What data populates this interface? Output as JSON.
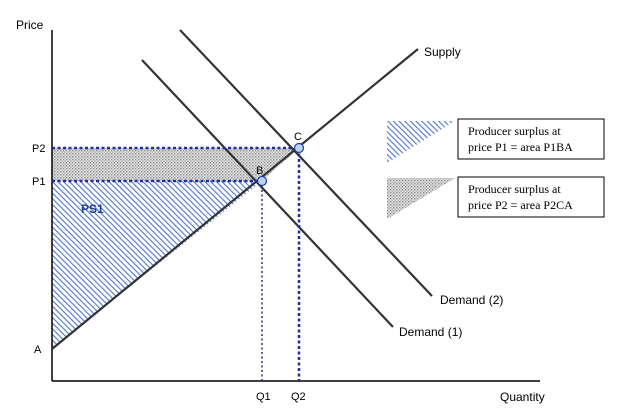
{
  "axes": {
    "y_label": "Price",
    "x_label": "Quantity"
  },
  "ticks": {
    "p2": "P2",
    "p1": "P1",
    "a": "A",
    "q1": "Q1",
    "q2": "Q2"
  },
  "points": {
    "b": "B",
    "c": "C"
  },
  "curves": {
    "supply": "Supply",
    "demand_1": "Demand (1)",
    "demand_2": "Demand (2)"
  },
  "regions": {
    "ps1": "PS1"
  },
  "legend": [
    {
      "line1": "Producer surplus at",
      "line2": "price P1 = area P1BA",
      "swatch": "blue-hatch"
    },
    {
      "line1": "Producer surplus at",
      "line2": "price P2 = area P2CA",
      "swatch": "gray-dots"
    }
  ],
  "colors": {
    "hatch_blue": "#4f76c8",
    "dots_gray": "#999999",
    "guide_lines": "#1f2f9f",
    "point_fill": "#bcd3f0",
    "point_stroke": "#1f3f9f"
  }
}
